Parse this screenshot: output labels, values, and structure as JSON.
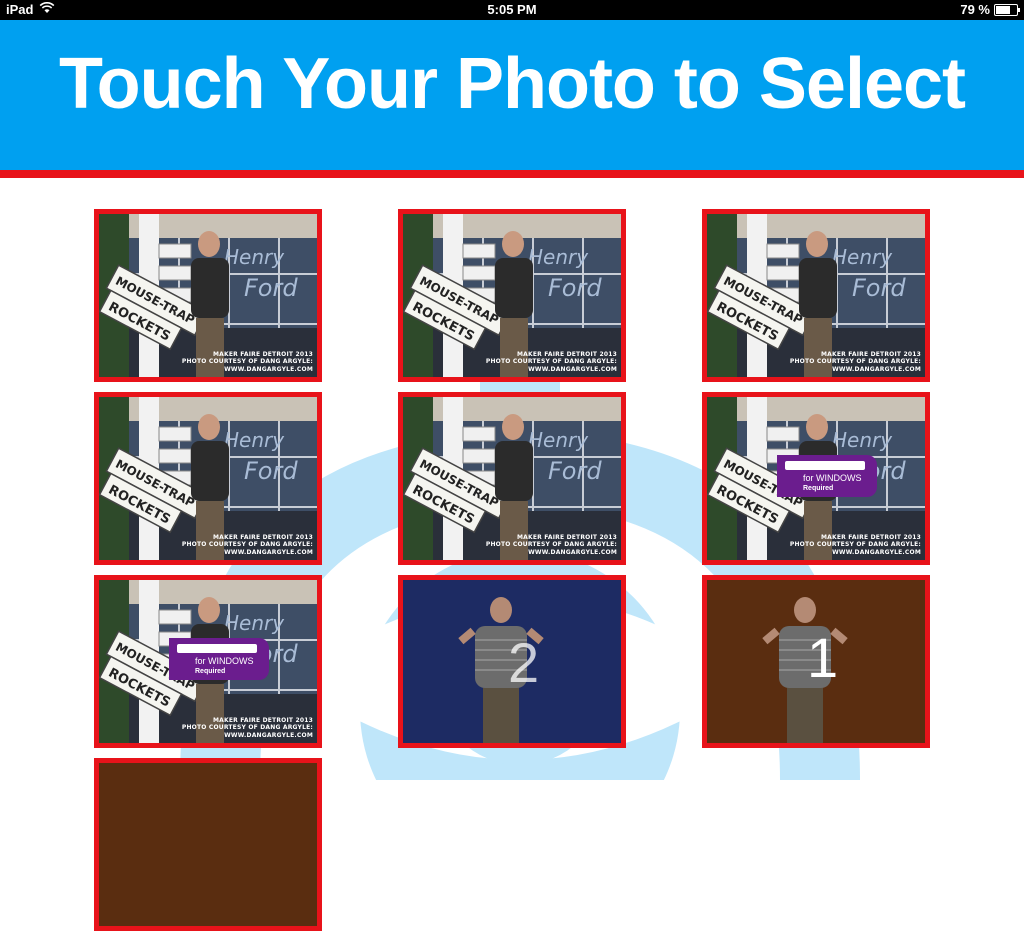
{
  "status_bar": {
    "device": "iPad",
    "time": "5:05 PM",
    "battery": "79 %",
    "battery_level": 0.79
  },
  "header": {
    "title": "Touch Your Photo to Select"
  },
  "colors": {
    "header_bg": "#00a0f0",
    "accent_red": "#e8131a",
    "watermark_blue": "#bfe6fa"
  },
  "photos": [
    {
      "scene": "storefront",
      "caption_line1": "MAKER FAIRE DETROIT 2013",
      "caption_line2": "PHOTO COURTESY OF DANG ARGYLE: WWW.DANGARGYLE.COM"
    },
    {
      "scene": "storefront",
      "caption_line1": "MAKER FAIRE DETROIT 2013",
      "caption_line2": "PHOTO COURTESY OF DANG ARGYLE: WWW.DANGARGYLE.COM"
    },
    {
      "scene": "storefront",
      "caption_line1": "MAKER FAIRE DETROIT 2013",
      "caption_line2": "PHOTO COURTESY OF DANG ARGYLE: WWW.DANGARGYLE.COM"
    },
    {
      "scene": "storefront",
      "caption_line1": "MAKER FAIRE DETROIT 2013",
      "caption_line2": "PHOTO COURTESY OF DANG ARGYLE: WWW.DANGARGYLE.COM"
    },
    {
      "scene": "storefront",
      "caption_line1": "MAKER FAIRE DETROIT 2013",
      "caption_line2": "PHOTO COURTESY OF DANG ARGYLE: WWW.DANGARGYLE.COM"
    },
    {
      "scene": "storefront-kinect",
      "caption_line1": "MAKER FAIRE DETROIT 2013",
      "caption_line2": "PHOTO COURTESY OF DANG ARGYLE: WWW.DANGARGYLE.COM",
      "badge_text": "for WINDOWS",
      "badge_sub": "Required"
    },
    {
      "scene": "storefront-kinect",
      "caption_line1": "MAKER FAIRE DETROIT 2013",
      "caption_line2": "PHOTO COURTESY OF DANG ARGYLE: WWW.DANGARGYLE.COM",
      "badge_text": "for WINDOWS",
      "badge_sub": "Required"
    },
    {
      "scene": "navy",
      "overlay_number": "2"
    },
    {
      "scene": "brown",
      "overlay_number": "1"
    }
  ]
}
